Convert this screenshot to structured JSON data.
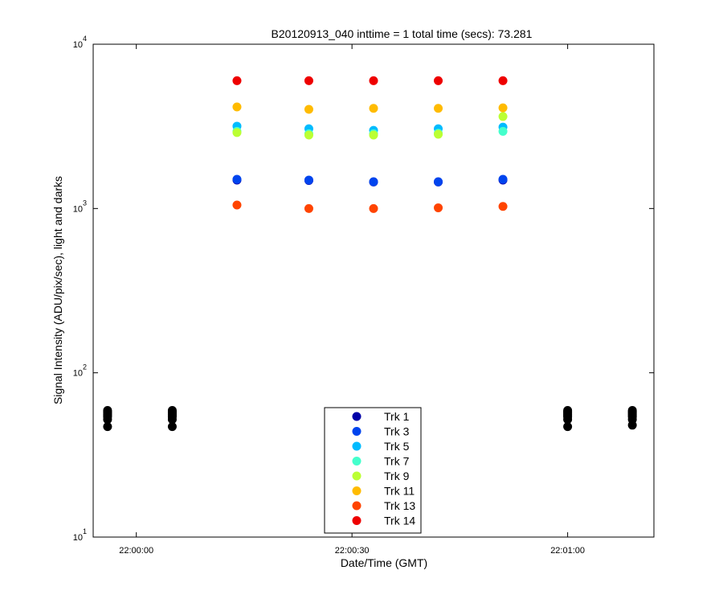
{
  "chart_data": {
    "type": "scatter",
    "title": "B20120913_040 inttime = 1 total time (secs): 73.281",
    "x_label": "Date/Time (GMT)",
    "y_label": "Signal Intensity (ADU/pix/sec), light and darks",
    "log_y": true,
    "grid": false,
    "legend": "bottom center",
    "xlim": [
      "21:59:54",
      "22:01:12"
    ],
    "xticks": [
      "22:00:00",
      "22:00:30",
      "22:01:00"
    ],
    "ylim": [
      10,
      10000
    ],
    "yticks": [
      {
        "value": 10,
        "label": "10^1"
      },
      {
        "value": 100,
        "label": "10^2"
      },
      {
        "value": 1000,
        "label": "10^3"
      },
      {
        "value": 10000,
        "label": "10^4"
      }
    ],
    "x": [
      "22:00:14",
      "22:00:24",
      "22:00:33",
      "22:00:42",
      "22:00:51"
    ],
    "series": [
      {
        "name": "Trk 1",
        "color": "#0000a8",
        "values": [
          1490,
          1480,
          1450,
          1450,
          1490
        ]
      },
      {
        "name": "Trk 3",
        "color": "#0044ee",
        "values": [
          1505,
          1490,
          1455,
          1455,
          1505
        ]
      },
      {
        "name": "Trk 5",
        "color": "#00bbff",
        "values": [
          3170,
          3060,
          2990,
          3060,
          3130
        ]
      },
      {
        "name": "Trk 7",
        "color": "#44ffcc",
        "values": [
          2950,
          2850,
          2850,
          2870,
          2950
        ]
      },
      {
        "name": "Trk 9",
        "color": "#bbff33",
        "values": [
          2900,
          2800,
          2800,
          2830,
          3630
        ]
      },
      {
        "name": "Trk 11",
        "color": "#ffbb00",
        "values": [
          4150,
          4015,
          4070,
          4070,
          4100
        ]
      },
      {
        "name": "Trk 13",
        "color": "#ff4400",
        "values": [
          1050,
          1000,
          1000,
          1010,
          1030
        ]
      },
      {
        "name": "Trk 14",
        "color": "#ee0000",
        "values": [
          6000,
          6000,
          6000,
          6000,
          6000
        ]
      }
    ],
    "darks": {
      "color": "#000000",
      "x": [
        "21:59:56",
        "22:00:05",
        "22:01:00",
        "22:01:09"
      ],
      "values": [
        [
          59,
          58,
          57,
          56,
          55,
          54,
          52,
          47
        ],
        [
          59,
          58,
          57,
          56,
          55,
          54,
          52,
          47
        ],
        [
          59,
          58,
          57,
          56,
          55,
          54,
          52,
          47
        ],
        [
          59,
          58,
          57,
          56,
          55,
          54,
          52,
          48
        ]
      ]
    }
  }
}
